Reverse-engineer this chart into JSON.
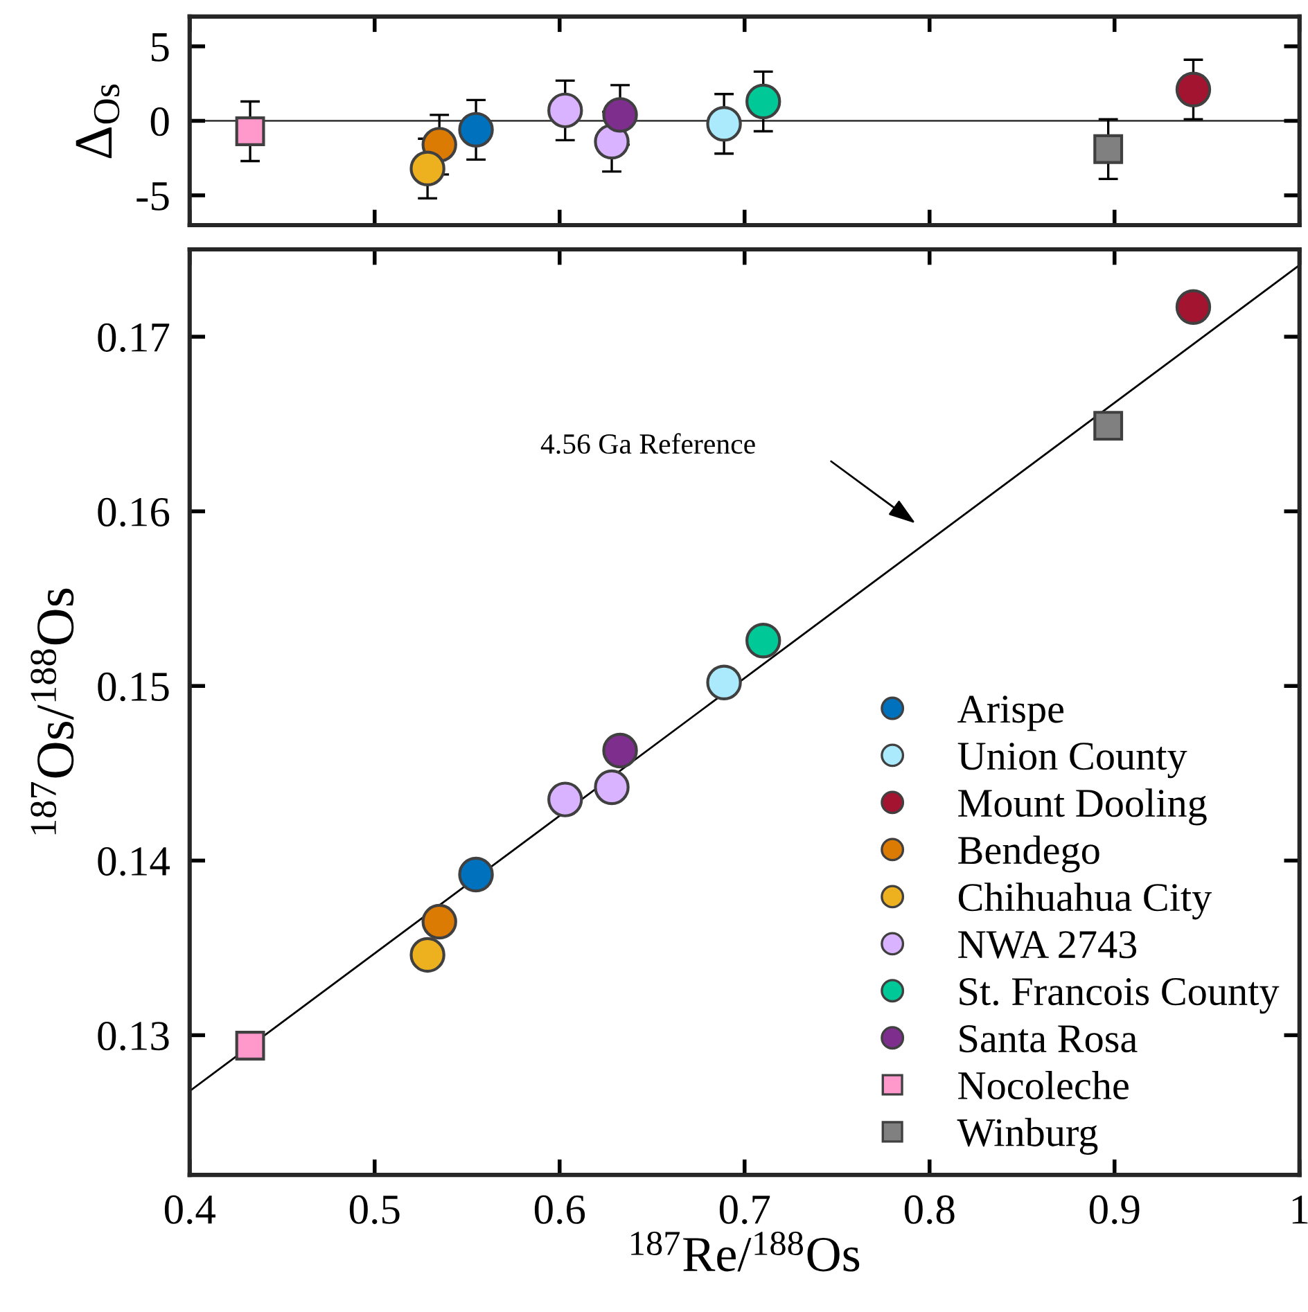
{
  "chart_data": [
    {
      "type": "scatter",
      "ylabel": "Δ$_{Os}$",
      "xlim": [
        0.4,
        1.0
      ],
      "xticks": [
        0.4,
        0.5,
        0.6,
        0.7,
        0.8,
        0.9,
        1.0
      ],
      "ylim": [
        -7,
        7
      ],
      "yticks": [
        5,
        0,
        -5
      ],
      "tick_labels": "y",
      "grid": false,
      "legend": false,
      "ref_lines": [
        {
          "axis": "y",
          "value": 0,
          "color": "#404040",
          "line_style": "solid"
        }
      ],
      "series": [
        {
          "color": "#0072bd",
          "marker": "circle",
          "x": [
            0.5548
          ],
          "values": [
            -0.6
          ],
          "errors": [
            2
          ]
        },
        {
          "color": "#aaeafc",
          "marker": "circle",
          "x": [
            0.6889
          ],
          "values": [
            -0.2
          ],
          "errors": [
            2
          ]
        },
        {
          "color": "#a2142f",
          "marker": "circle",
          "x": [
            0.9426
          ],
          "values": [
            2.1
          ],
          "errors": [
            2
          ]
        },
        {
          "color": "#dc7b04",
          "marker": "circle",
          "x": [
            0.535
          ],
          "values": [
            -1.6
          ],
          "errors": [
            2
          ]
        },
        {
          "color": "#edb120",
          "marker": "circle",
          "x": [
            0.5286
          ],
          "values": [
            -3.2
          ],
          "errors": [
            2
          ]
        },
        {
          "color": "#d9b3ff",
          "marker": "circle",
          "x": [
            0.603,
            0.6282
          ],
          "values": [
            0.7,
            -1.4
          ],
          "errors": [
            2,
            2
          ]
        },
        {
          "color": "#00c896",
          "marker": "circle",
          "x": [
            0.7101
          ],
          "values": [
            1.3
          ],
          "errors": [
            2
          ]
        },
        {
          "color": "#7e2f8e",
          "marker": "circle",
          "x": [
            0.6327
          ],
          "values": [
            0.4
          ],
          "errors": [
            2
          ]
        },
        {
          "color": "#ff99cc",
          "marker": "square",
          "x": [
            0.4327
          ],
          "values": [
            -0.7
          ],
          "errors": [
            2
          ]
        },
        {
          "color": "#808080",
          "marker": "square",
          "x": [
            0.8966
          ],
          "values": [
            -1.9
          ],
          "errors": [
            2
          ]
        }
      ]
    },
    {
      "type": "scatter",
      "xlabel": "$^{187}$Re/$^{188}$Os",
      "ylabel": "$^{187}$Os/$^{188}$Os",
      "xlim": [
        0.4,
        1.0
      ],
      "xticks": [
        0.4,
        0.5,
        0.6,
        0.7,
        0.8,
        0.9,
        1
      ],
      "ylim": [
        0.122,
        0.175
      ],
      "yticks": [
        0.13,
        0.14,
        0.15,
        0.16,
        0.17
      ],
      "grid": false,
      "legend": "bottom right",
      "annotations": [
        "4.56 Ga Reference"
      ],
      "series": [
        {
          "type": "line",
          "color": "#000000",
          "line_style": "solid",
          "marker": "none",
          "x": [
            0.4,
            1.0
          ],
          "values": [
            0.1268,
            0.1741
          ]
        },
        {
          "name": "Arispe",
          "color": "#0072bd",
          "marker": "circle",
          "x": [
            0.5548
          ],
          "values": [
            0.1392
          ]
        },
        {
          "name": "Union County",
          "color": "#aaeafc",
          "marker": "circle",
          "x": [
            0.6889
          ],
          "values": [
            0.1502
          ]
        },
        {
          "name": "Mount Dooling",
          "color": "#a2142f",
          "marker": "circle",
          "x": [
            0.9426
          ],
          "values": [
            0.1717
          ]
        },
        {
          "name": "Bendego",
          "color": "#dc7b04",
          "marker": "circle",
          "x": [
            0.535
          ],
          "values": [
            0.1365
          ]
        },
        {
          "name": "Chihuahua City",
          "color": "#edb120",
          "marker": "circle",
          "x": [
            0.5286
          ],
          "values": [
            0.1346
          ]
        },
        {
          "name": "NWA 2743",
          "color": "#d9b3ff",
          "marker": "circle",
          "x": [
            0.603,
            0.6282
          ],
          "values": [
            0.1435,
            0.1442
          ]
        },
        {
          "name": "St. Francois County",
          "color": "#00c896",
          "marker": "circle",
          "x": [
            0.7101
          ],
          "values": [
            0.1526
          ]
        },
        {
          "name": "Santa Rosa",
          "color": "#7e2f8e",
          "marker": "circle",
          "x": [
            0.6327
          ],
          "values": [
            0.1463
          ]
        },
        {
          "name": "Nocoleche",
          "color": "#ff99cc",
          "marker": "square",
          "x": [
            0.4327
          ],
          "values": [
            0.1294
          ]
        },
        {
          "name": "Winburg",
          "color": "#808080",
          "marker": "square",
          "x": [
            0.8966
          ],
          "values": [
            0.1649
          ]
        }
      ]
    }
  ]
}
